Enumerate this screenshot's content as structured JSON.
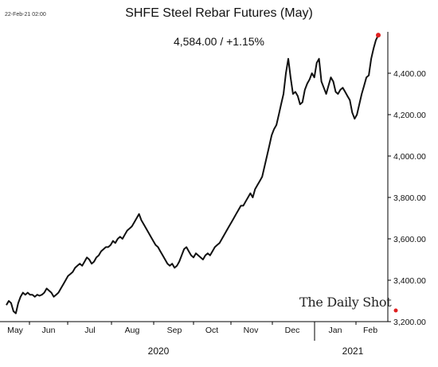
{
  "header": {
    "timestamp": "22-Feb-21 02:00",
    "title": "SHFE Steel Rebar Futures (May)",
    "subtitle": "4,584.00  /  +1.15%"
  },
  "watermark": "The Daily Shot",
  "colors": {
    "line": "#111111",
    "marker": "#e02020",
    "axis": "#000000"
  },
  "chart_data": {
    "type": "line",
    "title": "SHFE Steel Rebar Futures (May)",
    "xlabel": "",
    "ylabel": "",
    "ylim": [
      3200,
      4600
    ],
    "yticks": [
      3200,
      3400,
      3600,
      3800,
      4000,
      4200,
      4400
    ],
    "ytick_labels": [
      "3,200.00",
      "3,400.00",
      "3,600.00",
      "3,800.00",
      "4,000.00",
      "4,200.00",
      "4,400.00"
    ],
    "x_month_labels": [
      "May",
      "Jun",
      "Jul",
      "Aug",
      "Sep",
      "Oct",
      "Nov",
      "Dec",
      "Jan",
      "Feb"
    ],
    "year_labels": [
      "2020",
      "2021"
    ],
    "last_value": 4584,
    "last_change_pct": 1.15,
    "series": [
      {
        "values": [
          3280,
          3300,
          3290,
          3250,
          3240,
          3290,
          3320,
          3340,
          3330,
          3340,
          3330,
          3330,
          3320,
          3330,
          3325,
          3330,
          3340,
          3360,
          3350,
          3340,
          3320,
          3330,
          3340,
          3360,
          3380,
          3400,
          3420,
          3430,
          3440,
          3460,
          3470,
          3480,
          3470,
          3490,
          3510,
          3500,
          3480,
          3490,
          3510,
          3520,
          3540,
          3550,
          3560,
          3560,
          3570,
          3590,
          3580,
          3600,
          3610,
          3600,
          3620,
          3640,
          3650,
          3660,
          3680,
          3700,
          3720,
          3690,
          3670,
          3650,
          3630,
          3610,
          3590,
          3570,
          3560,
          3540,
          3520,
          3500,
          3480,
          3470,
          3480,
          3460,
          3470,
          3490,
          3520,
          3550,
          3560,
          3540,
          3520,
          3510,
          3530,
          3520,
          3510,
          3500,
          3520,
          3530,
          3520,
          3540,
          3560,
          3570,
          3580,
          3600,
          3620,
          3640,
          3660,
          3680,
          3700,
          3720,
          3740,
          3760,
          3760,
          3780,
          3800,
          3820,
          3800,
          3840,
          3860,
          3880,
          3900,
          3950,
          4000,
          4050,
          4100,
          4130,
          4150,
          4200,
          4250,
          4300,
          4400,
          4470,
          4380,
          4300,
          4310,
          4290,
          4250,
          4260,
          4320,
          4350,
          4370,
          4400,
          4380,
          4450,
          4470,
          4360,
          4330,
          4300,
          4340,
          4380,
          4360,
          4310,
          4300,
          4320,
          4330,
          4310,
          4290,
          4270,
          4210,
          4180,
          4200,
          4250,
          4300,
          4340,
          4380,
          4390,
          4470,
          4520,
          4560,
          4584
        ]
      }
    ]
  }
}
